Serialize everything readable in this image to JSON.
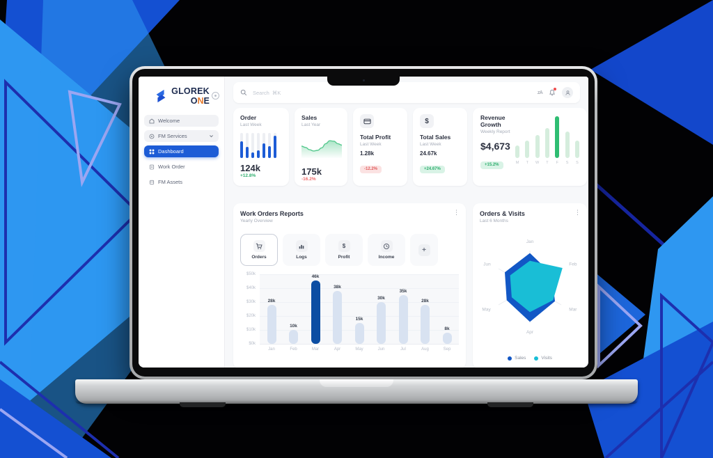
{
  "brand": {
    "line1": "GLOREK",
    "one_o": "O",
    "one_n": "N",
    "one_e": "E"
  },
  "sidebar": {
    "items": [
      {
        "label": "Welcome"
      },
      {
        "label": "FM Services"
      },
      {
        "label": "Dashboard",
        "active": true
      },
      {
        "label": "Work Order"
      },
      {
        "label": "FM Assets"
      }
    ]
  },
  "topbar": {
    "search_placeholder": "Search  ⌘K"
  },
  "stats": {
    "order": {
      "title": "Order",
      "subtitle": "Last Week",
      "value": "124k",
      "delta": "+12.8%"
    },
    "sales": {
      "title": "Sales",
      "subtitle": "Last Year",
      "value": "175k",
      "delta": "-16.2%"
    },
    "total_profit": {
      "title": "Total Profit",
      "subtitle": "Last Week",
      "value": "1.28k",
      "delta": "-12.2%"
    },
    "total_sales": {
      "title": "Total Sales",
      "subtitle": "Last Week",
      "value": "24.67k",
      "delta": "+24.67%"
    },
    "revenue": {
      "title": "Revenue Growth",
      "subtitle": "Weekly Report",
      "value": "$4,673",
      "delta": "+15.2%"
    }
  },
  "work_orders": {
    "title": "Work Orders Reports",
    "subtitle": "Yearly Overview",
    "tabs": [
      {
        "label": "Orders"
      },
      {
        "label": "Logs"
      },
      {
        "label": "Profit"
      },
      {
        "label": "Income"
      }
    ],
    "plus_label": "+"
  },
  "orders_visits": {
    "title": "Orders & Visits",
    "subtitle": "Last 6 Months",
    "legend": [
      "Sales",
      "Visits"
    ]
  },
  "chart_data": [
    {
      "name": "order-sparkline",
      "type": "bar",
      "values_pct": [
        68,
        45,
        22,
        30,
        58,
        48,
        88
      ]
    },
    {
      "name": "sales-sparkline",
      "type": "area",
      "points_pct": [
        50,
        44,
        33,
        27,
        30,
        42,
        62,
        76,
        74,
        62,
        55
      ]
    },
    {
      "name": "revenue-week",
      "type": "bar",
      "categories": [
        "M",
        "T",
        "W",
        "T",
        "F",
        "S",
        "S"
      ],
      "values_pct": [
        30,
        42,
        55,
        72,
        100,
        63,
        42
      ],
      "highlight_index": 4
    },
    {
      "name": "work-orders-bar",
      "type": "bar",
      "categories": [
        "Jan",
        "Feb",
        "Mar",
        "Apr",
        "May",
        "Jun",
        "Jul",
        "Aug",
        "Sep"
      ],
      "values_k": [
        28,
        10,
        46,
        38,
        15,
        30,
        35,
        28,
        8
      ],
      "highlight_index": 2,
      "ylim": [
        0,
        50
      ],
      "yticks": [
        "$50k",
        "$40k",
        "$30k",
        "$20k",
        "$10k",
        "$0k"
      ]
    },
    {
      "name": "orders-visits-radar",
      "type": "radar",
      "axes": [
        "Jan",
        "Feb",
        "Mar",
        "Apr",
        "May",
        "Jun"
      ],
      "series": [
        {
          "name": "Sales",
          "color": "#1257c5",
          "values": [
            0.93,
            0.7,
            0.8,
            0.97,
            0.74,
            0.8
          ]
        },
        {
          "name": "Visits",
          "color": "#19bed6",
          "values": [
            0.72,
            1.04,
            0.74,
            0.7,
            0.58,
            0.63
          ]
        }
      ]
    }
  ],
  "colors": {
    "primary_blue": "#1d5cd6",
    "bar_highlight": "#0c4ea3",
    "bar_light": "#d8e2f1",
    "green": "#2fbd72",
    "green_light": "#d5eddd",
    "badge_green": "#d9f3e6",
    "red": "#ee6a6a",
    "badge_red": "#fbe2e2",
    "teal": "#19bed6",
    "radar_blue": "#1257c5",
    "decor_dark_blue": "#1450d2",
    "decor_light_blue": "#2e97f1",
    "decor_navy": "#1d2fae",
    "decor_lavender": "#9ba6f2"
  }
}
